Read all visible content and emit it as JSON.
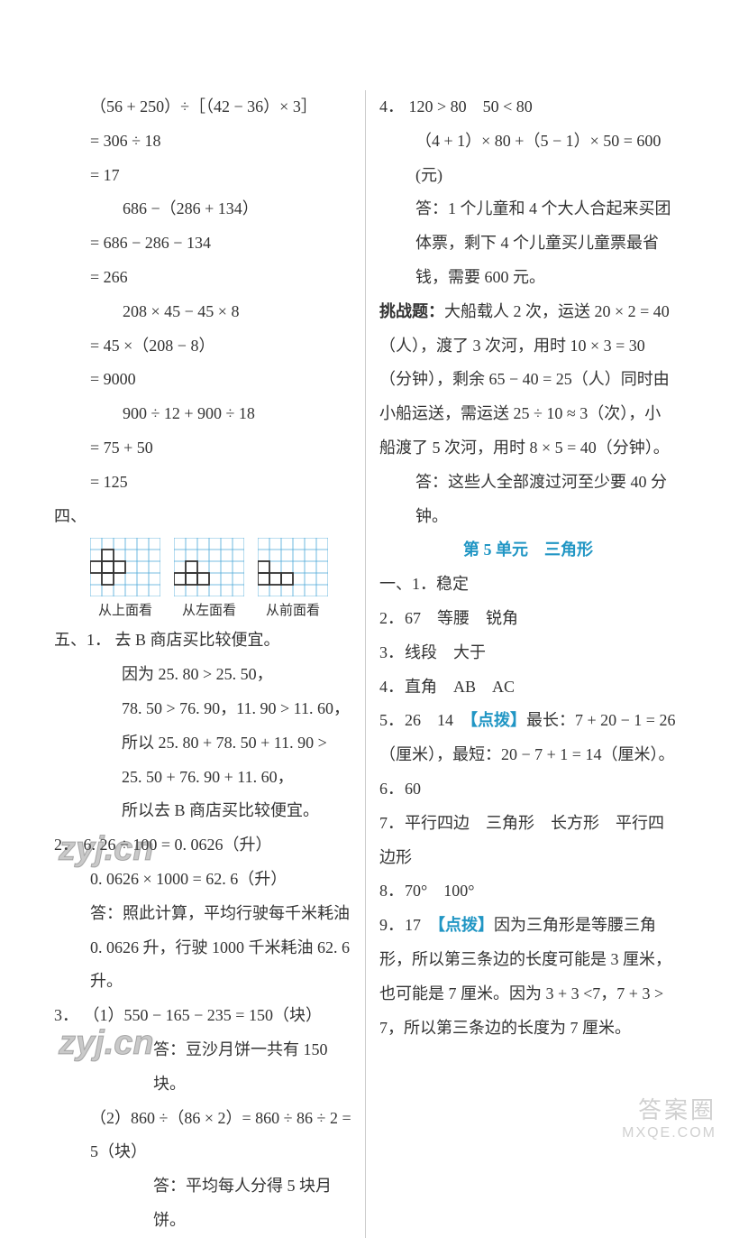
{
  "left": {
    "calc": [
      "（56 + 250）÷［（42 − 36）× 3］",
      "= 306 ÷ 18",
      "= 17",
      "　　686 −（286 + 134）",
      "= 686 − 286 − 134",
      "= 266",
      "　　208 × 45 − 45 × 8",
      "= 45 ×（208 − 8）",
      "= 9000",
      "　　900 ÷ 12 + 900 ÷ 18",
      "= 75 + 50",
      "= 125"
    ],
    "sec4": "四、",
    "grids": {
      "cell": 13,
      "line_color": "#4aa8d8",
      "shape_color": "#333333",
      "items": [
        {
          "label": "从上面看",
          "cells": [
            [
              1,
              1
            ],
            [
              2,
              0
            ],
            [
              2,
              1
            ],
            [
              2,
              2
            ],
            [
              3,
              1
            ]
          ]
        },
        {
          "label": "从左面看",
          "cells": [
            [
              2,
              1
            ],
            [
              3,
              0
            ],
            [
              3,
              1
            ],
            [
              3,
              2
            ]
          ]
        },
        {
          "label": "从前面看",
          "cells": [
            [
              2,
              0
            ],
            [
              3,
              0
            ],
            [
              3,
              1
            ],
            [
              3,
              2
            ]
          ]
        }
      ]
    },
    "sec5": "五、1．",
    "q5_1": [
      "去 B 商店买比较便宜。",
      "因为 25. 80 > 25. 50，",
      "78. 50 > 76. 90，11. 90 > 11. 60，",
      "所以 25. 80 + 78. 50 + 11. 90 >",
      "25. 50 + 76. 90 + 11. 60，",
      "所以去 B 商店买比较便宜。"
    ],
    "q5_2_num": "2．",
    "q5_2": [
      "6. 26 ÷ 100 = 0. 0626（升）",
      "0. 0626 × 1000 = 62. 6（升）",
      "答：照此计算，平均行驶每千米耗油 0. 0626 升，行驶 1000 千米耗油 62. 6 升。"
    ],
    "q5_3_num": "3．",
    "q5_3_a": "（1）550 − 165 − 235 = 150（块）",
    "q5_3_a_ans": "答：豆沙月饼一共有 150 块。",
    "q5_3_b": "（2）860 ÷（86 × 2）= 860 ÷ 86 ÷ 2 = 5（块）",
    "q5_3_b_ans": "答：平均每人分得 5 块月饼。"
  },
  "right": {
    "q4_num": "4．",
    "q4": [
      "120 > 80　50 < 80",
      "（4 + 1）× 80 +（5 − 1）× 50 = 600(元)",
      "答：1 个儿童和 4 个大人合起来买团体票，剩下 4 个儿童买儿童票最省钱，需要 600 元。"
    ],
    "challenge_label": "挑战题：",
    "challenge": [
      "大船载人 2 次，运送 20 × 2 = 40（人），渡了 3 次河，用时 10 × 3 = 30（分钟），剩余 65 − 40 = 25（人）同时由小船运送，需运送 25 ÷ 10 ≈ 3（次），小船渡了 5 次河，用时 8 × 5 = 40（分钟）。",
      "答：这些人全部渡过河至少要 40 分钟。"
    ],
    "unit_title": "第 5 单元　三角形",
    "sec1": "一、",
    "items": [
      {
        "n": "1．",
        "t": "稳定"
      },
      {
        "n": "2．",
        "t": "67　等腰　锐角"
      },
      {
        "n": "3．",
        "t": "线段　大于"
      },
      {
        "n": "4．",
        "t": "直角　AB　AC"
      }
    ],
    "i5_n": "5．",
    "i5_a": "26　14　",
    "i5_hint": "【点拨】",
    "i5_b": "最长：7 + 20 − 1 = 26（厘米），最短：20 − 7 + 1 = 14（厘米）。",
    "i6": {
      "n": "6．",
      "t": "60"
    },
    "i7": {
      "n": "7．",
      "t": "平行四边　三角形　长方形　平行四边形"
    },
    "i8": {
      "n": "8．",
      "t": "70°　100°"
    },
    "i9_n": "9．",
    "i9_a": "17　",
    "i9_hint": "【点拨】",
    "i9_b": "因为三角形是等腰三角形，所以第三条边的长度可能是 3 厘米，也可能是 7 厘米。因为 3 + 3 <7，7 + 3 > 7，所以第三条边的长度为 7 厘米。"
  },
  "watermark": "zyj.cn",
  "corner1": "答案圈",
  "corner2": "MXQE.COM"
}
